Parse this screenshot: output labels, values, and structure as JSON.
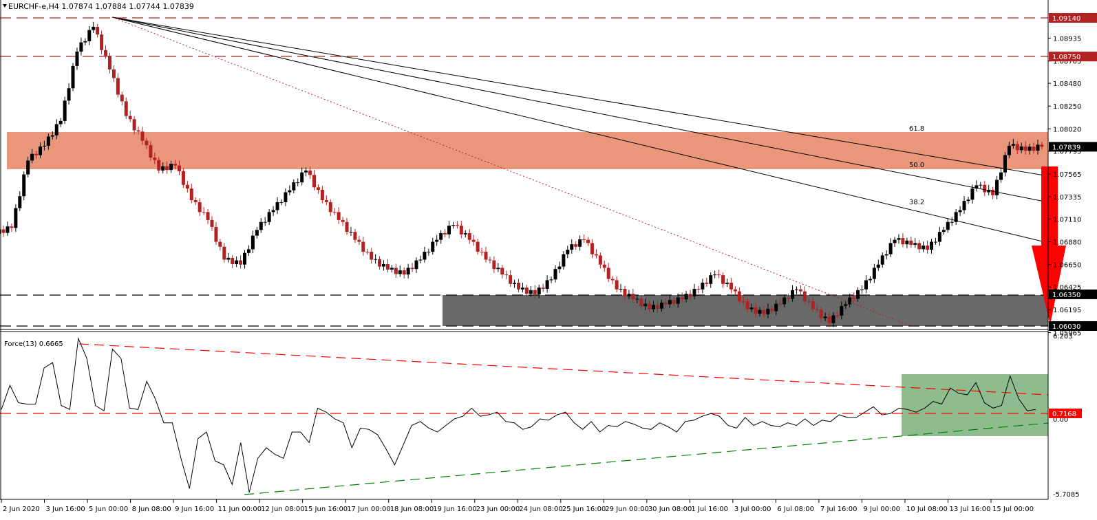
{
  "header": {
    "symbol_line": "EURCHF-e,H4  1.07874 1.07884 1.07744 1.07839",
    "indicator_label": "Force(13) 0.6665"
  },
  "colors": {
    "bull_candle": "#000000",
    "bear_candle": "#b22222",
    "resistance_zone": "#e9967a",
    "support_zone": "#696969",
    "force_zone": "#8fbc8f",
    "arrow": "#ff0000",
    "dashed_level": "#b22222",
    "force_red": "#ff0000",
    "force_green": "#008000"
  },
  "price_axis": {
    "labels": [
      "1.08935",
      "1.08705",
      "1.08480",
      "1.08250",
      "1.08020",
      "1.07795",
      "1.07565",
      "1.07335",
      "1.07110",
      "1.06880",
      "1.06650",
      "1.06425",
      "1.06195",
      "1.05965"
    ],
    "highlighted": [
      {
        "value": "1.09140",
        "style": "red"
      },
      {
        "value": "1.08750",
        "style": "red"
      },
      {
        "value": "1.07839",
        "style": "black"
      },
      {
        "value": "1.06350",
        "style": "black"
      },
      {
        "value": "1.06030",
        "style": "black"
      }
    ]
  },
  "force_axis": {
    "labels": [
      "6.203",
      "0.00",
      "-5.7085"
    ],
    "highlighted": {
      "value": "0.7168",
      "style": "red"
    }
  },
  "time_axis": {
    "labels": [
      "2 Jun 2020",
      "3 Jun 16:00",
      "5 Jun 00:00",
      "8 Jun 08:00",
      "9 Jun 16:00",
      "11 Jun 00:00",
      "12 Jun 08:00",
      "15 Jun 16:00",
      "17 Jun 00:00",
      "18 Jun 08:00",
      "19 Jun 16:00",
      "23 Jun 00:00",
      "24 Jun 08:00",
      "25 Jun 16:00",
      "29 Jun 00:00",
      "30 Jun 08:00",
      "1 Jul 16:00",
      "3 Jul 00:00",
      "6 Jul 08:00",
      "7 Jul 16:00",
      "9 Jul 00:00",
      "10 Jul 08:00",
      "13 Jul 16:00",
      "15 Jul 00:00"
    ]
  },
  "fib_labels": [
    "61.8",
    "50.0",
    "38.2"
  ],
  "chart_data": [
    {
      "type": "candlestick",
      "title": "EURCHF-e,H4",
      "ohlc_last": {
        "open": 1.07874,
        "high": 1.07884,
        "low": 1.07744,
        "close": 1.07839
      },
      "ylim": [
        1.05965,
        1.0921
      ],
      "x_range": [
        "2 Jun 2020",
        "15 Jul 2020"
      ],
      "horizontal_levels": [
        1.0914,
        1.0875,
        1.0635,
        1.0603
      ],
      "zones": [
        {
          "name": "resistance",
          "from": 1.0771,
          "to": 1.0799
        },
        {
          "name": "support",
          "from": 1.0603,
          "to": 1.0635
        }
      ],
      "fib_fan": {
        "anchor_high": 1.0914,
        "levels": [
          61.8,
          50.0,
          38.2
        ]
      },
      "close_path_approx": [
        1.0702,
        1.077,
        1.0785,
        1.081,
        1.088,
        1.0905,
        1.0862,
        1.0815,
        1.079,
        1.076,
        1.0765,
        1.073,
        1.071,
        1.067,
        1.0665,
        1.07,
        1.072,
        1.074,
        1.076,
        1.073,
        1.071,
        1.069,
        1.067,
        1.066,
        1.0655,
        1.067,
        1.069,
        1.0705,
        1.069,
        1.067,
        1.0655,
        1.064,
        1.0635,
        1.065,
        1.068,
        1.069,
        1.0665,
        1.064,
        1.063,
        1.062,
        1.0625,
        1.063,
        1.064,
        1.0655,
        1.064,
        1.062,
        1.0615,
        1.0625,
        1.064,
        1.062,
        1.0606,
        1.0625,
        1.064,
        1.0665,
        1.069,
        1.0685,
        1.068,
        1.07,
        1.072,
        1.0745,
        1.0735,
        1.0785,
        1.078,
        1.0784
      ]
    },
    {
      "type": "line",
      "title": "Force(13) 0.6665",
      "ylim": [
        -5.7085,
        6.203
      ],
      "levels": [
        0.7168,
        0.0
      ],
      "values_approx": [
        0.7,
        2.5,
        1.2,
        1.1,
        1.1,
        3.8,
        4.2,
        1.0,
        0.7,
        6.0,
        4.5,
        1.0,
        0.6,
        5.2,
        4.5,
        0.8,
        0.7,
        2.8,
        1.5,
        -0.3,
        -0.3,
        -3.0,
        -5.3,
        -1.5,
        -1.0,
        -3.2,
        -3.5,
        -5.0,
        -1.8,
        -5.6,
        -3.0,
        -2.2,
        -2.7,
        -3.0,
        -1.0,
        -1.0,
        -1.8,
        0.8,
        0.5,
        0.0,
        -0.3,
        -2.2,
        -0.7,
        -0.8,
        -1.2,
        -2.3,
        -3.5,
        -2.0,
        -0.5,
        -0.2,
        -0.7,
        -1.0,
        -0.5,
        0.0,
        0.2,
        0.8,
        0.2,
        0.3,
        0.5,
        -0.2,
        -0.3,
        -0.8,
        -0.6,
        0.0,
        -0.1,
        0.3,
        0.5,
        -0.3,
        -0.8,
        -0.2,
        -1.0,
        -0.5,
        -0.6,
        -0.2,
        -0.4,
        -0.7,
        -0.8,
        -0.3,
        -0.6,
        -1.0,
        -0.2,
        -0.1,
        0.2,
        0.4,
        0.2,
        -0.5,
        -0.7,
        0.1,
        -0.5,
        -0.2,
        -0.5,
        -0.6,
        -0.3,
        -0.5,
        0.0,
        -0.5,
        -0.1,
        -0.2,
        0.3,
        0.1,
        0.1,
        0.5,
        0.9,
        0.3,
        0.4,
        0.8,
        0.7,
        0.5,
        0.8,
        1.3,
        1.1,
        2.3,
        1.9,
        1.8,
        2.7,
        1.2,
        0.8,
        1.0,
        3.2,
        1.5,
        0.6,
        0.7
      ]
    }
  ]
}
